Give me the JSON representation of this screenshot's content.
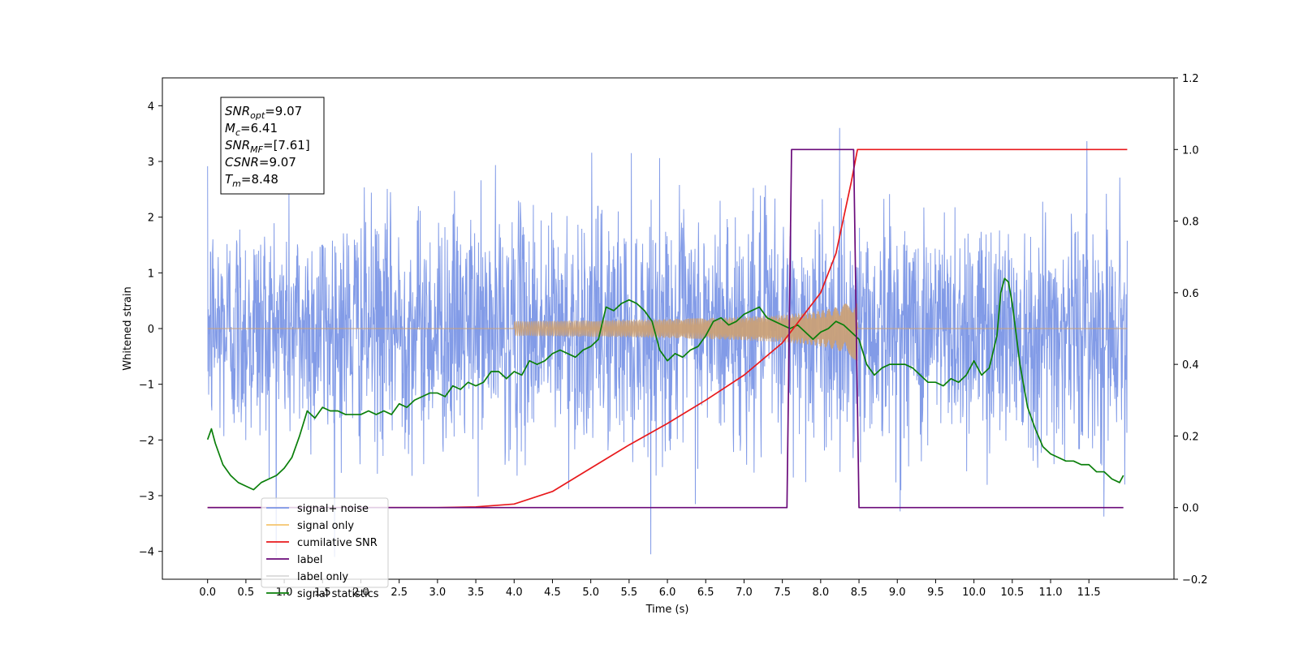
{
  "chart_data": {
    "type": "line",
    "xlabel": "Time (s)",
    "ylabel": "Whitened strain",
    "xlim": [
      -0.59,
      12.61
    ],
    "ylim_left": [
      -4.5,
      4.5
    ],
    "ylim_right": [
      -0.2,
      1.2
    ],
    "x_ticks": [
      0.0,
      0.5,
      1.0,
      1.5,
      2.0,
      2.5,
      3.0,
      3.5,
      4.0,
      4.5,
      5.0,
      5.5,
      6.0,
      6.5,
      7.0,
      7.5,
      8.0,
      8.5,
      9.0,
      9.5,
      10.0,
      10.5,
      11.0,
      11.5
    ],
    "x_tick_labels": [
      "0.0",
      "0.5",
      "1.0",
      "1.5",
      "2.0",
      "2.5",
      "3.0",
      "3.5",
      "4.0",
      "4.5",
      "5.0",
      "5.5",
      "6.0",
      "6.5",
      "7.0",
      "7.5",
      "8.0",
      "8.5",
      "9.0",
      "9.5",
      "10.0",
      "10.5",
      "11.0",
      "11.5"
    ],
    "y_ticks_left": [
      -4,
      -3,
      -2,
      -1,
      0,
      1,
      2,
      3,
      4
    ],
    "y_tick_labels_left": [
      "−4",
      "−3",
      "−2",
      "−1",
      "0",
      "1",
      "2",
      "3",
      "4"
    ],
    "y_ticks_right": [
      -0.2,
      0.0,
      0.2,
      0.4,
      0.6,
      0.8,
      1.0,
      1.2
    ],
    "y_tick_labels_right": [
      "−0.2",
      "0.0",
      "0.2",
      "0.4",
      "0.6",
      "0.8",
      "1.0",
      "1.2"
    ],
    "grid": false,
    "legend_position": "lower-left",
    "series": [
      {
        "name": "signal+ noise",
        "color": "#7b96e6",
        "axis": "left",
        "description_range": {
          "x_start": 0.0,
          "x_end": 12.0,
          "typical_abs_max": 2.5,
          "peak_max": 4.05,
          "peak_min": -4.1
        }
      },
      {
        "name": "signal only",
        "color": "#f5c46e",
        "axis": "left",
        "chirp_start": 4.0,
        "chirp_end": 8.48,
        "max_amplitude": 0.62
      },
      {
        "name": "cumilative SNR",
        "color": "#e8191c",
        "axis": "right",
        "x": [
          0.0,
          3.0,
          3.5,
          4.0,
          4.5,
          5.0,
          5.5,
          6.0,
          6.5,
          7.0,
          7.5,
          8.0,
          8.2,
          8.4,
          8.48,
          8.5,
          12.0
        ],
        "y": [
          0.0,
          0.0,
          0.002,
          0.01,
          0.045,
          0.11,
          0.175,
          0.235,
          0.3,
          0.37,
          0.46,
          0.6,
          0.71,
          0.91,
          1.0,
          1.0,
          1.0
        ]
      },
      {
        "name": "label",
        "color": "#6a0a7a",
        "axis": "right",
        "x": [
          0.0,
          7.56,
          7.62,
          8.43,
          8.5,
          11.95
        ],
        "y": [
          0.0,
          0.0,
          1.0,
          1.0,
          0.0,
          0.0
        ]
      },
      {
        "name": "label only",
        "color": "#d9d9d9",
        "axis": "right",
        "x": [],
        "y": []
      },
      {
        "name": "signal statistics",
        "color": "#0a7f0a",
        "axis": "right",
        "x": [
          0.0,
          0.05,
          0.1,
          0.2,
          0.3,
          0.4,
          0.5,
          0.6,
          0.7,
          0.8,
          0.9,
          1.0,
          1.1,
          1.2,
          1.3,
          1.4,
          1.5,
          1.6,
          1.7,
          1.8,
          1.9,
          2.0,
          2.1,
          2.2,
          2.3,
          2.4,
          2.5,
          2.6,
          2.7,
          2.8,
          2.9,
          3.0,
          3.1,
          3.2,
          3.3,
          3.4,
          3.5,
          3.6,
          3.7,
          3.8,
          3.9,
          4.0,
          4.1,
          4.2,
          4.3,
          4.4,
          4.5,
          4.6,
          4.7,
          4.8,
          4.9,
          5.0,
          5.1,
          5.2,
          5.3,
          5.4,
          5.5,
          5.6,
          5.7,
          5.8,
          5.9,
          6.0,
          6.1,
          6.2,
          6.3,
          6.4,
          6.5,
          6.6,
          6.7,
          6.8,
          6.9,
          7.0,
          7.1,
          7.2,
          7.3,
          7.4,
          7.5,
          7.6,
          7.7,
          7.8,
          7.9,
          8.0,
          8.1,
          8.2,
          8.3,
          8.4,
          8.5,
          8.6,
          8.7,
          8.8,
          8.9,
          9.0,
          9.1,
          9.2,
          9.3,
          9.4,
          9.5,
          9.6,
          9.7,
          9.8,
          9.9,
          10.0,
          10.1,
          10.2,
          10.3,
          10.35,
          10.4,
          10.45,
          10.5,
          10.6,
          10.7,
          10.8,
          10.9,
          11.0,
          11.1,
          11.2,
          11.3,
          11.4,
          11.5,
          11.6,
          11.7,
          11.8,
          11.9,
          11.95
        ],
        "y": [
          0.19,
          0.22,
          0.18,
          0.12,
          0.09,
          0.07,
          0.06,
          0.05,
          0.07,
          0.08,
          0.09,
          0.11,
          0.14,
          0.2,
          0.27,
          0.25,
          0.28,
          0.27,
          0.27,
          0.26,
          0.26,
          0.26,
          0.27,
          0.26,
          0.27,
          0.26,
          0.29,
          0.28,
          0.3,
          0.31,
          0.32,
          0.32,
          0.31,
          0.34,
          0.33,
          0.35,
          0.34,
          0.35,
          0.38,
          0.38,
          0.36,
          0.38,
          0.37,
          0.41,
          0.4,
          0.41,
          0.43,
          0.44,
          0.43,
          0.42,
          0.44,
          0.45,
          0.47,
          0.56,
          0.55,
          0.57,
          0.58,
          0.57,
          0.55,
          0.52,
          0.44,
          0.41,
          0.43,
          0.42,
          0.44,
          0.45,
          0.48,
          0.52,
          0.53,
          0.51,
          0.52,
          0.54,
          0.55,
          0.56,
          0.53,
          0.52,
          0.51,
          0.5,
          0.51,
          0.49,
          0.47,
          0.49,
          0.5,
          0.52,
          0.51,
          0.49,
          0.47,
          0.4,
          0.37,
          0.39,
          0.4,
          0.4,
          0.4,
          0.39,
          0.37,
          0.35,
          0.35,
          0.34,
          0.36,
          0.35,
          0.37,
          0.41,
          0.37,
          0.39,
          0.48,
          0.6,
          0.64,
          0.63,
          0.57,
          0.4,
          0.28,
          0.22,
          0.17,
          0.15,
          0.14,
          0.13,
          0.13,
          0.12,
          0.12,
          0.1,
          0.1,
          0.08,
          0.07,
          0.09
        ]
      }
    ],
    "annotation": {
      "lines": [
        {
          "main": "SNR",
          "sub": "opt",
          "value": "=9.07"
        },
        {
          "main": "M",
          "sub": "c",
          "value": "=6.41"
        },
        {
          "main": "SNR",
          "sub": "MF",
          "value": "=[7.61]"
        },
        {
          "main": "CSNR",
          "sub": "",
          "value": "=9.07"
        },
        {
          "main": "T",
          "sub": "m",
          "value": "=8.48"
        }
      ]
    }
  }
}
